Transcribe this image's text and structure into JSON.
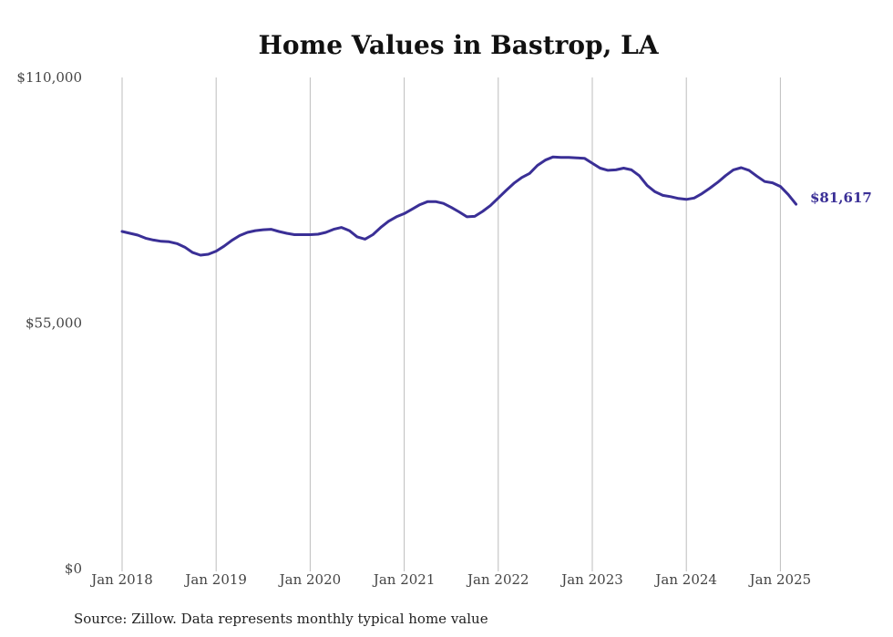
{
  "chart_data": {
    "type": "line",
    "title": "Home Values in Bastrop, LA",
    "xlabel": "",
    "ylabel": "",
    "y_ticks": [
      "$110,000",
      "$55,000",
      "$0"
    ],
    "y_tick_values": [
      110000,
      55000,
      0
    ],
    "ylim": [
      0,
      110000
    ],
    "x_ticks": [
      "Jan 2018",
      "Jan 2019",
      "Jan 2020",
      "Jan 2021",
      "Jan 2022",
      "Jan 2023",
      "Jan 2024",
      "Jan 2025"
    ],
    "x_tick_values": [
      "2018-01",
      "2019-01",
      "2020-01",
      "2021-01",
      "2022-01",
      "2023-01",
      "2024-01",
      "2025-01"
    ],
    "xlim": [
      "2018-01",
      "2025-03"
    ],
    "grid": "vertical lines at each January",
    "series_color": "#3a2f96",
    "end_label": "$81,617",
    "series": [
      {
        "x": [
          "2018-01",
          "2018-02",
          "2018-03",
          "2018-04",
          "2018-05",
          "2018-06",
          "2018-07",
          "2018-08",
          "2018-09",
          "2018-10",
          "2018-11",
          "2018-12",
          "2019-01",
          "2019-02",
          "2019-03",
          "2019-04",
          "2019-05",
          "2019-06",
          "2019-07",
          "2019-08",
          "2019-09",
          "2019-10",
          "2019-11",
          "2019-12",
          "2020-01",
          "2020-02",
          "2020-03",
          "2020-04",
          "2020-05",
          "2020-06",
          "2020-07",
          "2020-08",
          "2020-09",
          "2020-10",
          "2020-11",
          "2020-12",
          "2021-01",
          "2021-02",
          "2021-03",
          "2021-04",
          "2021-05",
          "2021-06",
          "2021-07",
          "2021-08",
          "2021-09",
          "2021-10",
          "2021-11",
          "2021-12",
          "2022-01",
          "2022-02",
          "2022-03",
          "2022-04",
          "2022-05",
          "2022-06",
          "2022-07",
          "2022-08",
          "2022-09",
          "2022-10",
          "2022-11",
          "2022-12",
          "2023-01",
          "2023-02",
          "2023-03",
          "2023-04",
          "2023-05",
          "2023-06",
          "2023-07",
          "2023-08",
          "2023-09",
          "2023-10",
          "2023-11",
          "2023-12",
          "2024-01",
          "2024-02",
          "2024-03",
          "2024-04",
          "2024-05",
          "2024-06",
          "2024-07",
          "2024-08",
          "2024-09",
          "2024-10",
          "2024-11",
          "2024-12",
          "2025-01",
          "2025-02",
          "2025-03"
        ],
        "values": [
          75500,
          75100,
          74700,
          74000,
          73600,
          73300,
          73200,
          72800,
          72000,
          70800,
          70200,
          70400,
          71100,
          72200,
          73500,
          74600,
          75300,
          75700,
          75900,
          76000,
          75500,
          75100,
          74800,
          74800,
          74800,
          74900,
          75300,
          76000,
          76400,
          75700,
          74300,
          73800,
          74800,
          76400,
          77800,
          78800,
          79500,
          80500,
          81500,
          82200,
          82200,
          81800,
          80900,
          79900,
          78800,
          78900,
          80000,
          81300,
          83000,
          84700,
          86300,
          87600,
          88500,
          90300,
          91500,
          92200,
          92100,
          92100,
          92000,
          91900,
          90800,
          89700,
          89200,
          89300,
          89700,
          89300,
          88000,
          85800,
          84400,
          83600,
          83300,
          82900,
          82700,
          83000,
          84000,
          85200,
          86500,
          88000,
          89300,
          89800,
          89200,
          87900,
          86700,
          86400,
          85600,
          83800,
          81617
        ]
      }
    ]
  },
  "footer": {
    "source": "Source: Zillow. Data represents monthly typical home value"
  }
}
